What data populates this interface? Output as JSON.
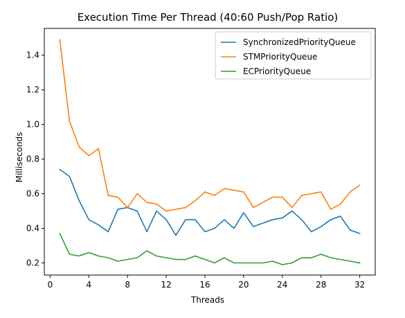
{
  "chart_data": {
    "type": "line",
    "title": "Execution Time Per Thread (40:60 Push/Pop Ratio)",
    "xlabel": "Threads",
    "ylabel": "Milliseconds",
    "xlim": [
      -0.6,
      33.6
    ],
    "ylim": [
      0.13,
      1.555
    ],
    "xticks": [
      0,
      4,
      8,
      12,
      16,
      20,
      24,
      28,
      32
    ],
    "yticks": [
      0.2,
      0.4,
      0.6,
      0.8,
      1.0,
      1.2,
      1.4
    ],
    "ytick_labels": [
      "0.2",
      "0.4",
      "0.6",
      "0.8",
      "1.0",
      "1.2",
      "1.4"
    ],
    "grid": false,
    "legend_position": "top-right",
    "x": [
      1,
      2,
      3,
      4,
      5,
      6,
      7,
      8,
      9,
      10,
      11,
      12,
      13,
      14,
      15,
      16,
      17,
      18,
      19,
      20,
      21,
      22,
      23,
      24,
      25,
      26,
      27,
      28,
      29,
      30,
      31,
      32
    ],
    "series": [
      {
        "name": "SynchronizedPriorityQueue",
        "color": "#1f77b4",
        "values": [
          0.74,
          0.7,
          0.56,
          0.45,
          0.42,
          0.38,
          0.51,
          0.52,
          0.5,
          0.38,
          0.5,
          0.45,
          0.36,
          0.45,
          0.45,
          0.38,
          0.4,
          0.45,
          0.4,
          0.49,
          0.41,
          0.43,
          0.45,
          0.46,
          0.5,
          0.45,
          0.38,
          0.41,
          0.45,
          0.47,
          0.39,
          0.37
        ]
      },
      {
        "name": "STMPriorityQueue",
        "color": "#ff7f0e",
        "values": [
          1.49,
          1.02,
          0.87,
          0.82,
          0.86,
          0.59,
          0.58,
          0.52,
          0.6,
          0.55,
          0.54,
          0.5,
          0.51,
          0.52,
          0.56,
          0.61,
          0.59,
          0.63,
          0.62,
          0.61,
          0.52,
          0.55,
          0.58,
          0.58,
          0.52,
          0.59,
          0.6,
          0.61,
          0.51,
          0.54,
          0.61,
          0.65
        ]
      },
      {
        "name": "ECPriorityQueue",
        "color": "#2ca02c",
        "values": [
          0.37,
          0.25,
          0.24,
          0.26,
          0.24,
          0.23,
          0.21,
          0.22,
          0.23,
          0.27,
          0.24,
          0.23,
          0.22,
          0.22,
          0.24,
          0.22,
          0.2,
          0.23,
          0.2,
          0.2,
          0.2,
          0.2,
          0.21,
          0.19,
          0.2,
          0.23,
          0.23,
          0.25,
          0.23,
          0.22,
          0.21,
          0.2
        ]
      }
    ]
  }
}
